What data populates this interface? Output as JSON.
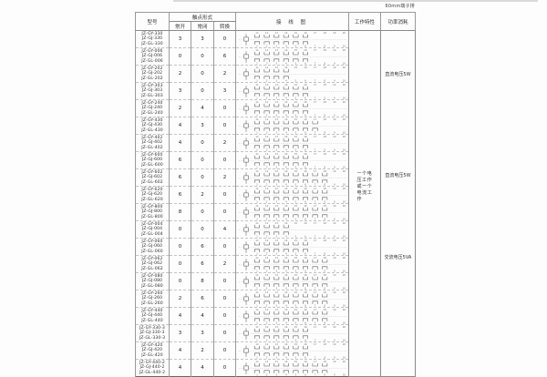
{
  "note_top_right": "60mm端子排",
  "table": {
    "headers": {
      "model": "型号",
      "contact_form": "触点形式",
      "contact_no": "常开",
      "contact_nc": "常闭",
      "contact_co": "转换",
      "wiring": "接 线 图",
      "working": "工作特性",
      "power": "功率消耗"
    },
    "working_text": "一个电压工作或一个电流工作",
    "power_labels": [
      "直流电压5W",
      "直流电压5W",
      "交流电压5VA"
    ],
    "diagram_terminals_top": [
      "11",
      "12",
      "13",
      "14",
      "15",
      "16",
      "17",
      "18",
      "19",
      "20"
    ],
    "diagram_terminals_bottom": [
      "1",
      "2",
      "3",
      "4",
      "5",
      "6",
      "7",
      "8",
      "9",
      "10"
    ],
    "rows": [
      {
        "models": [
          "JZ-GY-330",
          "JZ-GJ-330",
          "JZ-GL-330"
        ],
        "no": 3,
        "nc": 3,
        "co": 0
      },
      {
        "models": [
          "JZ-GY-006",
          "JZ-GJ-006",
          "JZ-GL-006"
        ],
        "no": 0,
        "nc": 0,
        "co": 6
      },
      {
        "models": [
          "JZ-GY-202",
          "JZ-GJ-202",
          "JZ-GL-202"
        ],
        "no": 2,
        "nc": 0,
        "co": 2
      },
      {
        "models": [
          "JZ-GY-303",
          "JZ-GJ-303",
          "JZ-GL-303"
        ],
        "no": 3,
        "nc": 0,
        "co": 3
      },
      {
        "models": [
          "JZ-GY-240",
          "JZ-GJ-240",
          "JZ-GL-240"
        ],
        "no": 2,
        "nc": 4,
        "co": 0
      },
      {
        "models": [
          "JZ-GY-430",
          "JZ-GJ-430",
          "JZ-GL-430"
        ],
        "no": 4,
        "nc": 3,
        "co": 0
      },
      {
        "models": [
          "JZ-GY-402",
          "JZ-GJ-402",
          "JZ-GL-402"
        ],
        "no": 4,
        "nc": 0,
        "co": 2
      },
      {
        "models": [
          "JZ-GY-600",
          "JZ-GJ-600",
          "JZ-GL-600"
        ],
        "no": 6,
        "nc": 0,
        "co": 0
      },
      {
        "models": [
          "JZ-GY-602",
          "JZ-GJ-602",
          "JZ-GL-602"
        ],
        "no": 6,
        "nc": 0,
        "co": 2
      },
      {
        "models": [
          "JZ-GY-620",
          "JZ-GJ-620",
          "JZ-GL-620"
        ],
        "no": 6,
        "nc": 2,
        "co": 0
      },
      {
        "models": [
          "JZ-GY-800",
          "JZ-GJ-800",
          "JZ-GL-800"
        ],
        "no": 8,
        "nc": 0,
        "co": 0
      },
      {
        "models": [
          "JZ-GY-004",
          "JZ-GJ-004",
          "JZ-GL-004"
        ],
        "no": 0,
        "nc": 0,
        "co": 4
      },
      {
        "models": [
          "JZ-GY-060",
          "JZ-GJ-060",
          "JZ-GL-060"
        ],
        "no": 0,
        "nc": 6,
        "co": 0
      },
      {
        "models": [
          "JZ-GY-062",
          "JZ-GJ-062",
          "JZ-GL-062"
        ],
        "no": 0,
        "nc": 6,
        "co": 2
      },
      {
        "models": [
          "JZ-GY-080",
          "JZ-GJ-080",
          "JZ-GL-080"
        ],
        "no": 0,
        "nc": 8,
        "co": 0
      },
      {
        "models": [
          "JZ-GY-260",
          "JZ-GJ-260",
          "JZ-GL-260"
        ],
        "no": 2,
        "nc": 6,
        "co": 0
      },
      {
        "models": [
          "JZ-GY-440",
          "JZ-GJ-440",
          "JZ-GL-440"
        ],
        "no": 4,
        "nc": 4,
        "co": 0
      },
      {
        "models": [
          "JZ-GY-330-3",
          "JZ-GJ-330-3",
          "JZ-GL-330-3"
        ],
        "no": 3,
        "nc": 3,
        "co": 0
      },
      {
        "models": [
          "JZ-GY-420",
          "JZ-GJ-420",
          "JZ-GL-420"
        ],
        "no": 4,
        "nc": 2,
        "co": 0
      },
      {
        "models": [
          "JZ-GY-440-2",
          "JZ-GJ-440-2",
          "JZ-GL-440-2"
        ],
        "no": 4,
        "nc": 4,
        "co": 0
      }
    ]
  }
}
